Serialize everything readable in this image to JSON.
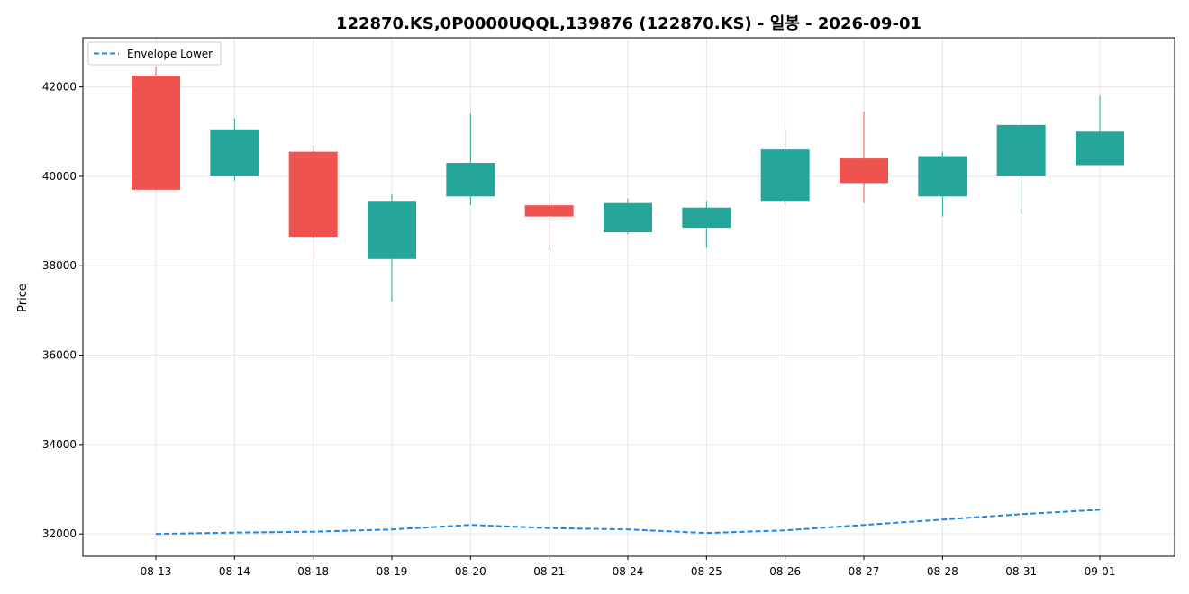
{
  "chart_data": {
    "type": "candlestick",
    "title": "122870.KS,0P0000UQQL,139876 (122870.KS) - 일봉 - 2026-09-01",
    "xlabel": "",
    "ylabel": "Price",
    "ylim": [
      31500,
      43100
    ],
    "y_ticks": [
      32000,
      34000,
      36000,
      38000,
      40000,
      42000
    ],
    "grid": true,
    "legend_position": "top-left",
    "categories": [
      "08-13",
      "08-14",
      "08-18",
      "08-19",
      "08-20",
      "08-21",
      "08-24",
      "08-25",
      "08-26",
      "08-27",
      "08-28",
      "08-31",
      "09-01"
    ],
    "candles": [
      {
        "date": "08-13",
        "open": 42250,
        "close": 39700,
        "high": 42450,
        "low": 39700
      },
      {
        "date": "08-14",
        "open": 40000,
        "close": 41050,
        "high": 41300,
        "low": 39900
      },
      {
        "date": "08-18",
        "open": 40550,
        "close": 38650,
        "high": 40700,
        "low": 38150
      },
      {
        "date": "08-19",
        "open": 38150,
        "close": 39450,
        "high": 39600,
        "low": 37200
      },
      {
        "date": "08-20",
        "open": 39550,
        "close": 40300,
        "high": 41400,
        "low": 39350
      },
      {
        "date": "08-21",
        "open": 39350,
        "close": 39100,
        "high": 39600,
        "low": 38350
      },
      {
        "date": "08-24",
        "open": 38750,
        "close": 39400,
        "high": 39500,
        "low": 38700
      },
      {
        "date": "08-25",
        "open": 38850,
        "close": 39300,
        "high": 39450,
        "low": 38400
      },
      {
        "date": "08-26",
        "open": 39450,
        "close": 40600,
        "high": 41050,
        "low": 39350
      },
      {
        "date": "08-27",
        "open": 40400,
        "close": 39850,
        "high": 41450,
        "low": 39400
      },
      {
        "date": "08-28",
        "open": 39550,
        "close": 40450,
        "high": 40550,
        "low": 39100
      },
      {
        "date": "08-31",
        "open": 40000,
        "close": 41150,
        "high": 41150,
        "low": 39150
      },
      {
        "date": "09-01",
        "open": 40250,
        "close": 41000,
        "high": 41800,
        "low": 40250
      }
    ],
    "series": [
      {
        "name": "Envelope Lower",
        "values": [
          32000,
          32030,
          32050,
          32100,
          32200,
          32130,
          32100,
          32020,
          32080,
          32200,
          32320,
          32440,
          32540
        ]
      }
    ],
    "colors": {
      "up": "#26a69a",
      "down": "#ef5350",
      "envelope": "#1e88e5",
      "grid": "#e6e6e6"
    }
  }
}
